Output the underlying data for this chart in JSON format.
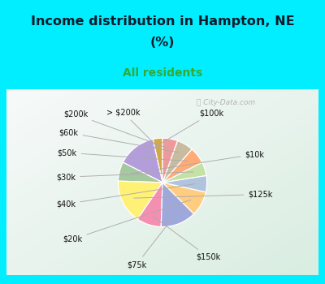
{
  "title_line1": "Income distribution in Hampton, NE",
  "title_line2": "(%)",
  "subtitle": "All residents",
  "title_color": "#0d1b2a",
  "subtitle_color": "#33aa33",
  "bg_cyan": "#00eeff",
  "bg_chart": "#c8e8d8",
  "watermark": "City-Data.com",
  "labels": [
    "> $200k",
    "$100k",
    "$10k",
    "$125k",
    "$150k",
    "$75k",
    "$20k",
    "$40k",
    "$30k",
    "$50k",
    "$60k",
    "$200k"
  ],
  "sizes": [
    3.5,
    14.0,
    7.0,
    16.0,
    9.0,
    13.0,
    9.0,
    6.0,
    5.0,
    6.0,
    6.0,
    5.5
  ],
  "colors": [
    "#d4a843",
    "#b39ddb",
    "#a5c8a0",
    "#fff176",
    "#f48fb1",
    "#9fa8da",
    "#ffcc80",
    "#b0c4de",
    "#c5e1a5",
    "#ffab76",
    "#c8bca0",
    "#ef9a9a"
  ],
  "startangle": 90,
  "label_coords": [
    [
      -0.42,
      1.3,
      "right"
    ],
    [
      0.68,
      1.28,
      "left"
    ],
    [
      1.52,
      0.52,
      "left"
    ],
    [
      1.58,
      -0.22,
      "left"
    ],
    [
      0.62,
      -1.38,
      "left"
    ],
    [
      -0.3,
      -1.52,
      "right"
    ],
    [
      -1.48,
      -1.05,
      "right"
    ],
    [
      -1.6,
      -0.4,
      "right"
    ],
    [
      -1.6,
      0.1,
      "right"
    ],
    [
      -1.58,
      0.55,
      "right"
    ],
    [
      -1.55,
      0.92,
      "right"
    ],
    [
      -1.38,
      1.26,
      "right"
    ]
  ],
  "figsize": [
    4.0,
    3.5
  ],
  "dpi": 100
}
